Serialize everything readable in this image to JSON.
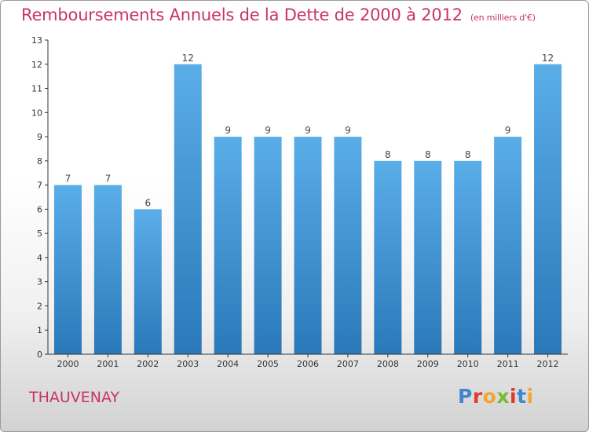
{
  "header": {
    "title": "Remboursements Annuels de la Dette de 2000 à 2012",
    "subtitle": "(en milliers d'€)"
  },
  "commune": "THAUVENAY",
  "logo": {
    "text": "Proxiti"
  },
  "colors": {
    "title": "#c8336b",
    "bar_light": "#5aaee8",
    "bar_dark": "#2a78b8",
    "axis": "#333333"
  },
  "chart_data": {
    "type": "bar",
    "title": "Remboursements Annuels de la Dette de 2000 à 2012",
    "unit": "(en milliers d'€)",
    "xlabel": "",
    "ylabel": "",
    "categories": [
      "2000",
      "2001",
      "2002",
      "2003",
      "2004",
      "2005",
      "2006",
      "2007",
      "2008",
      "2009",
      "2010",
      "2011",
      "2012"
    ],
    "values": [
      7,
      7,
      6,
      12,
      9,
      9,
      9,
      9,
      8,
      8,
      8,
      9,
      12
    ],
    "data_labels": [
      "7",
      "7",
      "6",
      "12",
      "9",
      "9",
      "9",
      "9",
      "8",
      "8",
      "8",
      "9",
      "12"
    ],
    "ylim": [
      0,
      13
    ],
    "yticks": [
      0,
      1,
      2,
      3,
      4,
      5,
      6,
      7,
      8,
      9,
      10,
      11,
      12,
      13
    ],
    "grid": false,
    "legend": "none"
  }
}
